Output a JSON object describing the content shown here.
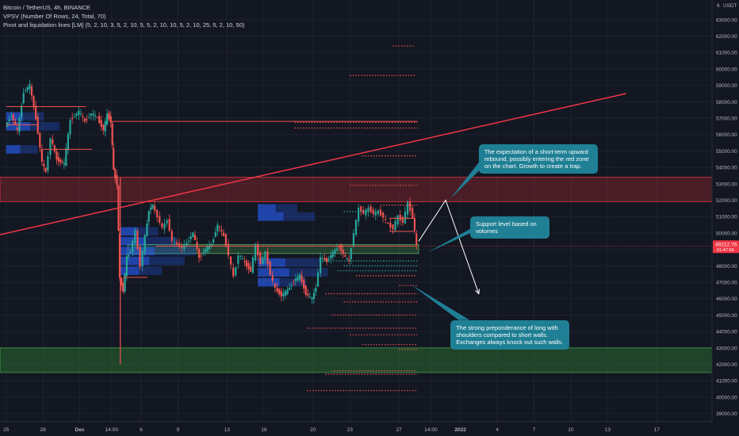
{
  "legend": {
    "symbol": "Bitcoin / TetherUS, 4h, BINANCE",
    "indicator1": "VPSV (Number Of Rows, 24, Total, 70)",
    "indicator2": "Pivot and liquidation lines [LM] (5, 2, 10, 3, 5, 2, 10, 5, 5, 2, 10, 10, 5, 2, 10, 25, 5, 2, 10, 50)"
  },
  "currency_label": "USDT",
  "currency_prefix": "6",
  "colors": {
    "background": "#131722",
    "grid": "#1e2230",
    "axis_text": "#b2b5be",
    "bull": "#26a69a",
    "bear": "#ef5350",
    "vp": "#2962ff",
    "trend": "#f23645",
    "red_zone": "#b2292f",
    "green_zone": "#2e7d32",
    "callout": "#1f7f95",
    "price_badge": "#f23645"
  },
  "chart_data": {
    "type": "candlestick",
    "ylim": [
      38500,
      64200
    ],
    "y_ticks": [
      39000,
      40000,
      41000,
      42000,
      43000,
      44000,
      45000,
      46000,
      47000,
      48000,
      49000,
      50000,
      51000,
      52000,
      53000,
      54000,
      55000,
      56000,
      57000,
      58000,
      59000,
      60000,
      61000,
      62000,
      63000
    ],
    "x_domain_days": [
      -0.5,
      57.5
    ],
    "x_ticks": [
      {
        "label": "25",
        "day": 0
      },
      {
        "label": "28",
        "day": 3
      },
      {
        "label": "Dec",
        "day": 6
      },
      {
        "label": "14:00",
        "day": 8.6
      },
      {
        "label": "6",
        "day": 11
      },
      {
        "label": "9",
        "day": 14
      },
      {
        "label": "13",
        "day": 18
      },
      {
        "label": "16",
        "day": 21
      },
      {
        "label": "20",
        "day": 25
      },
      {
        "label": "23",
        "day": 28
      },
      {
        "label": "27",
        "day": 32
      },
      {
        "label": "14:00",
        "day": 34.6
      },
      {
        "label": "2022",
        "day": 37
      },
      {
        "label": "4",
        "day": 40
      },
      {
        "label": "7",
        "day": 43
      },
      {
        "label": "10",
        "day": 46
      },
      {
        "label": "13",
        "day": 49
      },
      {
        "label": "17",
        "day": 53
      }
    ],
    "last_price": {
      "value": 49212.76,
      "label": "49212.76",
      "countdown": "01:47:56"
    },
    "close_path": [
      [
        0,
        56500
      ],
      [
        0.5,
        57200
      ],
      [
        1,
        56200
      ],
      [
        1.5,
        58600
      ],
      [
        2,
        59000
      ],
      [
        2.5,
        57000
      ],
      [
        3,
        54300
      ],
      [
        3.3,
        53700
      ],
      [
        3.7,
        55800
      ],
      [
        4.2,
        54500
      ],
      [
        4.8,
        54200
      ],
      [
        5.3,
        56900
      ],
      [
        6,
        57400
      ],
      [
        6.5,
        56800
      ],
      [
        7,
        57300
      ],
      [
        7.5,
        57000
      ],
      [
        8,
        56300
      ],
      [
        8.3,
        57200
      ],
      [
        8.6,
        56800
      ],
      [
        8.8,
        53800
      ],
      [
        9.1,
        53000
      ],
      [
        9.3,
        47200
      ],
      [
        9.6,
        46500
      ],
      [
        9.9,
        48500
      ],
      [
        10.2,
        48900
      ],
      [
        10.6,
        50100
      ],
      [
        11,
        48000
      ],
      [
        11.4,
        49800
      ],
      [
        11.7,
        51400
      ],
      [
        12,
        51700
      ],
      [
        12.4,
        51000
      ],
      [
        12.8,
        50300
      ],
      [
        13.2,
        50800
      ],
      [
        13.6,
        49500
      ],
      [
        14,
        49300
      ],
      [
        14.4,
        49100
      ],
      [
        14.8,
        49400
      ],
      [
        15.3,
        50000
      ],
      [
        15.8,
        48500
      ],
      [
        16.3,
        49000
      ],
      [
        16.8,
        49300
      ],
      [
        17.3,
        50500
      ],
      [
        17.8,
        49800
      ],
      [
        18.2,
        48700
      ],
      [
        18.6,
        47300
      ],
      [
        19,
        48700
      ],
      [
        19.5,
        48200
      ],
      [
        20,
        47700
      ],
      [
        20.4,
        49200
      ],
      [
        20.8,
        48200
      ],
      [
        21.2,
        48800
      ],
      [
        21.6,
        47500
      ],
      [
        22,
        46600
      ],
      [
        22.5,
        46200
      ],
      [
        23,
        46500
      ],
      [
        23.5,
        47100
      ],
      [
        24,
        47400
      ],
      [
        24.5,
        46300
      ],
      [
        25,
        46000
      ],
      [
        25.3,
        46700
      ],
      [
        25.7,
        48500
      ],
      [
        26.2,
        48300
      ],
      [
        26.7,
        48800
      ],
      [
        27.2,
        49200
      ],
      [
        27.7,
        48500
      ],
      [
        28,
        48300
      ],
      [
        28.4,
        50000
      ],
      [
        28.8,
        51500
      ],
      [
        29.2,
        51200
      ],
      [
        29.6,
        51500
      ],
      [
        30,
        51200
      ],
      [
        30.4,
        51300
      ],
      [
        30.8,
        51000
      ],
      [
        31.2,
        50500
      ],
      [
        31.6,
        50300
      ],
      [
        32,
        51000
      ],
      [
        32.4,
        50700
      ],
      [
        32.8,
        51800
      ],
      [
        33.2,
        51000
      ],
      [
        33.5,
        49200
      ]
    ],
    "volume_profile_rows": [
      {
        "price": 47700,
        "from_day": 9.3,
        "to_day": 20.5,
        "width": 0.55
      },
      {
        "price": 48300,
        "from_day": 9.3,
        "to_day": 20.5,
        "width": 0.85
      },
      {
        "price": 48900,
        "from_day": 9.3,
        "to_day": 20.5,
        "width": 1.0
      },
      {
        "price": 49500,
        "from_day": 9.3,
        "to_day": 20.5,
        "width": 0.75
      },
      {
        "price": 50100,
        "from_day": 9.3,
        "to_day": 20.5,
        "width": 0.5
      },
      {
        "price": 47000,
        "from_day": 20.5,
        "to_day": 33.5,
        "width": 0.55
      },
      {
        "price": 47600,
        "from_day": 20.5,
        "to_day": 33.5,
        "width": 0.8
      },
      {
        "price": 48200,
        "from_day": 20.5,
        "to_day": 33.5,
        "width": 0.7
      },
      {
        "price": 51000,
        "from_day": 20.5,
        "to_day": 33.5,
        "width": 0.65
      },
      {
        "price": 51500,
        "from_day": 20.5,
        "to_day": 33.5,
        "width": 0.45
      },
      {
        "price": 56500,
        "from_day": 0,
        "to_day": 9.3,
        "width": 0.85
      },
      {
        "price": 57100,
        "from_day": 0,
        "to_day": 9.3,
        "width": 0.6
      },
      {
        "price": 55100,
        "from_day": 0,
        "to_day": 9.3,
        "width": 0.5
      }
    ],
    "pivot_lines": [
      {
        "price": 56800,
        "from_day": 8.5,
        "to_day": 33.5,
        "style": "solid"
      },
      {
        "price": 57700,
        "from_day": 0,
        "to_day": 6.5,
        "style": "solid"
      },
      {
        "price": 55100,
        "from_day": 3,
        "to_day": 7,
        "style": "solid"
      },
      {
        "price": 56600,
        "from_day": 0,
        "to_day": 2.5,
        "style": "solid"
      },
      {
        "price": 49200,
        "from_day": 12.2,
        "to_day": 33.5,
        "style": "solid"
      },
      {
        "price": 47300,
        "from_day": 9.5,
        "to_day": 11.5,
        "style": "solid"
      },
      {
        "price": 50900,
        "from_day": 31.2,
        "to_day": 33.3,
        "style": "solid"
      },
      {
        "price": 50100,
        "from_day": 31.2,
        "to_day": 33.3,
        "style": "solid"
      }
    ],
    "liquidation_lines": [
      {
        "price": 61400,
        "from_day": 31.5,
        "to_day": 33.3,
        "color": "bear"
      },
      {
        "price": 59600,
        "from_day": 28,
        "to_day": 33.3,
        "color": "bear"
      },
      {
        "price": 56750,
        "from_day": 23.5,
        "to_day": 33.5,
        "color": "bear"
      },
      {
        "price": 56400,
        "from_day": 23.5,
        "to_day": 33.5,
        "color": "bear"
      },
      {
        "price": 54700,
        "from_day": 29,
        "to_day": 33.5,
        "color": "bear"
      },
      {
        "price": 52900,
        "from_day": 28,
        "to_day": 33.5,
        "color": "bear"
      },
      {
        "price": 51700,
        "from_day": 30.5,
        "to_day": 33.5,
        "color": "bear"
      },
      {
        "price": 51300,
        "from_day": 27.5,
        "to_day": 29.5,
        "color": "bull"
      },
      {
        "price": 48300,
        "from_day": 25.5,
        "to_day": 33.5,
        "color": "bull"
      },
      {
        "price": 48000,
        "from_day": 27.5,
        "to_day": 33.5,
        "color": "bull"
      },
      {
        "price": 47700,
        "from_day": 27,
        "to_day": 33.5,
        "color": "bull"
      },
      {
        "price": 47400,
        "from_day": 28.5,
        "to_day": 33.5,
        "color": "bear"
      },
      {
        "price": 46800,
        "from_day": 32,
        "to_day": 33.5,
        "color": "bear"
      },
      {
        "price": 46300,
        "from_day": 26,
        "to_day": 33.5,
        "color": "bear"
      },
      {
        "price": 45800,
        "from_day": 27.5,
        "to_day": 33.5,
        "color": "bear"
      },
      {
        "price": 45000,
        "from_day": 26.5,
        "to_day": 33.5,
        "color": "bear"
      },
      {
        "price": 44200,
        "from_day": 24.5,
        "to_day": 33.5,
        "color": "bear"
      },
      {
        "price": 43800,
        "from_day": 28,
        "to_day": 33.5,
        "color": "bear"
      },
      {
        "price": 43200,
        "from_day": 29,
        "to_day": 33.5,
        "color": "bear"
      },
      {
        "price": 42900,
        "from_day": 32,
        "to_day": 33.5,
        "color": "bear"
      },
      {
        "price": 41600,
        "from_day": 26.5,
        "to_day": 33.5,
        "color": "bear"
      },
      {
        "price": 41400,
        "from_day": 26,
        "to_day": 33.5,
        "color": "bear"
      },
      {
        "price": 40400,
        "from_day": 24.5,
        "to_day": 33.5,
        "color": "bear"
      }
    ],
    "zones": [
      {
        "kind": "red",
        "price_high": 53400,
        "price_low": 51900,
        "from_day": -0.5,
        "to_day": 57.5
      },
      {
        "kind": "green",
        "price_high": 43000,
        "price_low": 41500,
        "from_day": -0.5,
        "to_day": 57.5
      },
      {
        "kind": "support",
        "price_high": 49300,
        "price_low": 48750,
        "from_day": 9.9,
        "to_day": 33.6
      }
    ],
    "trend_line": {
      "from": [
        -0.5,
        49900
      ],
      "to": [
        50.5,
        58500
      ]
    },
    "projection": [
      [
        33.6,
        49500
      ],
      [
        35.8,
        52000
      ],
      [
        38.5,
        46300
      ]
    ],
    "annotations": [
      {
        "text": "The expectation of a short-term upward rebound, possibly entering the red zone on the chart. Growth to create a trap.",
        "box": {
          "day": 38.5,
          "price": 55400
        },
        "target": {
          "day": 36.2,
          "price": 52100
        }
      },
      {
        "text": "Support level based on volumes",
        "box": {
          "day": 37.8,
          "price": 51000
        },
        "target": {
          "day": 34.3,
          "price": 48800
        }
      },
      {
        "text": "The strong preponderance of long with shoulders compared to short walls. Exchanges always knock out such walls.",
        "box": {
          "day": 36.2,
          "price": 44700
        },
        "target": {
          "day": 33.0,
          "price": 46850
        }
      }
    ]
  }
}
